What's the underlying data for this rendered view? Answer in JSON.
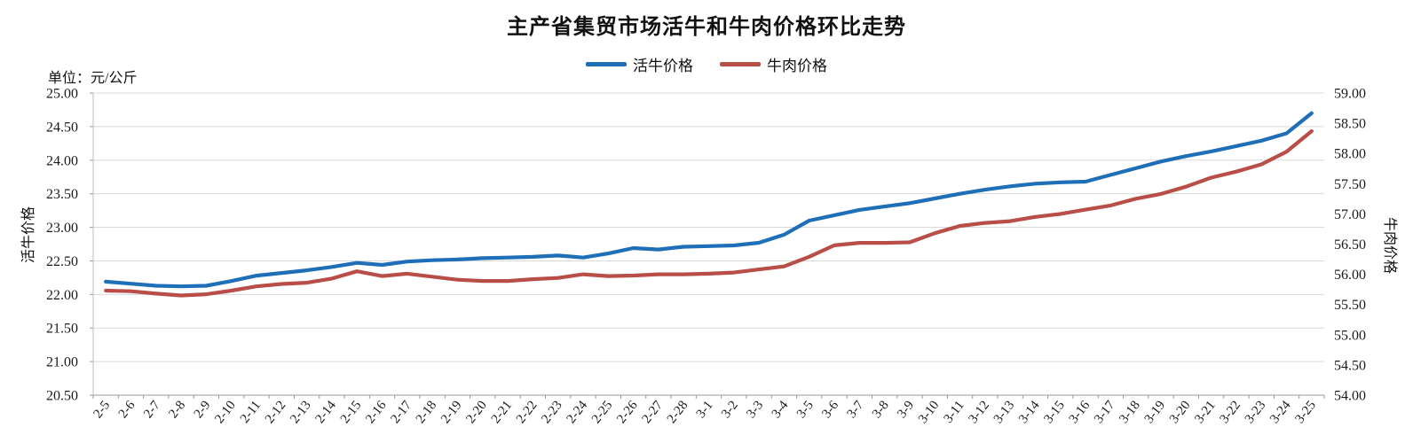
{
  "title": "主产省集贸市场活牛和牛肉价格环比走势",
  "unit_label": "单位：元/公斤",
  "legend": [
    {
      "label": "活牛价格",
      "color": "#1e6fb8"
    },
    {
      "label": "牛肉价格",
      "color": "#b94d47"
    }
  ],
  "left_axis": {
    "title": "活牛价格",
    "min": 20.5,
    "max": 25.0,
    "step": 0.5
  },
  "right_axis": {
    "title": "牛肉价格",
    "min": 54.0,
    "max": 59.0,
    "step": 0.5
  },
  "chart_data": {
    "type": "line",
    "title": "主产省集贸市场活牛和牛肉价格环比走势",
    "xlabel": "",
    "ylabel_left": "活牛价格",
    "ylabel_right": "牛肉价格",
    "unit": "元/公斤",
    "grid": true,
    "legend_position": "top",
    "left_ylim": [
      20.5,
      25.0
    ],
    "right_ylim": [
      54.0,
      59.0
    ],
    "categories": [
      "2-5",
      "2-6",
      "2-7",
      "2-8",
      "2-9",
      "2-10",
      "2-11",
      "2-12",
      "2-13",
      "2-14",
      "2-15",
      "2-16",
      "2-17",
      "2-18",
      "2-19",
      "2-20",
      "2-21",
      "2-22",
      "2-23",
      "2-24",
      "2-25",
      "2-26",
      "2-27",
      "2-28",
      "3-1",
      "3-2",
      "3-3",
      "3-4",
      "3-5",
      "3-6",
      "3-7",
      "3-8",
      "3-9",
      "3-10",
      "3-11",
      "3-12",
      "3-13",
      "3-14",
      "3-15",
      "3-16",
      "3-17",
      "3-18",
      "3-19",
      "3-20",
      "3-21",
      "3-22",
      "3-23",
      "3-24",
      "3-25"
    ],
    "series": [
      {
        "name": "活牛价格",
        "axis": "left",
        "color": "#1e6fb8",
        "values": [
          22.19,
          22.16,
          22.13,
          22.12,
          22.13,
          22.2,
          22.28,
          22.32,
          22.36,
          22.41,
          22.47,
          22.44,
          22.49,
          22.51,
          22.52,
          22.54,
          22.55,
          22.56,
          22.58,
          22.55,
          22.61,
          22.69,
          22.67,
          22.71,
          22.72,
          22.73,
          22.77,
          22.89,
          23.1,
          23.18,
          23.26,
          23.31,
          23.36,
          23.43,
          23.5,
          23.56,
          23.61,
          23.65,
          23.67,
          23.68,
          23.78,
          23.88,
          23.98,
          24.06,
          24.13,
          24.21,
          24.29,
          24.4,
          24.7
        ]
      },
      {
        "name": "牛肉价格",
        "axis": "right",
        "color": "#b94d47",
        "values": [
          55.73,
          55.72,
          55.68,
          55.65,
          55.67,
          55.73,
          55.8,
          55.84,
          55.86,
          55.93,
          56.05,
          55.97,
          56.01,
          55.96,
          55.91,
          55.89,
          55.89,
          55.92,
          55.94,
          56.0,
          55.97,
          55.98,
          56.0,
          56.0,
          56.01,
          56.03,
          56.08,
          56.13,
          56.29,
          56.48,
          56.52,
          56.52,
          56.53,
          56.68,
          56.8,
          56.85,
          56.88,
          56.95,
          57.0,
          57.07,
          57.14,
          57.25,
          57.33,
          57.45,
          57.6,
          57.7,
          57.82,
          58.03,
          58.37
        ]
      }
    ],
    "left_tick_labels": [
      "25.00",
      "24.50",
      "24.00",
      "23.50",
      "23.00",
      "22.50",
      "22.00",
      "21.50",
      "21.00",
      "20.50"
    ],
    "right_tick_labels": [
      "59.00",
      "58.50",
      "58.00",
      "57.50",
      "57.00",
      "56.50",
      "56.00",
      "55.50",
      "55.00",
      "54.50",
      "54.00"
    ]
  }
}
